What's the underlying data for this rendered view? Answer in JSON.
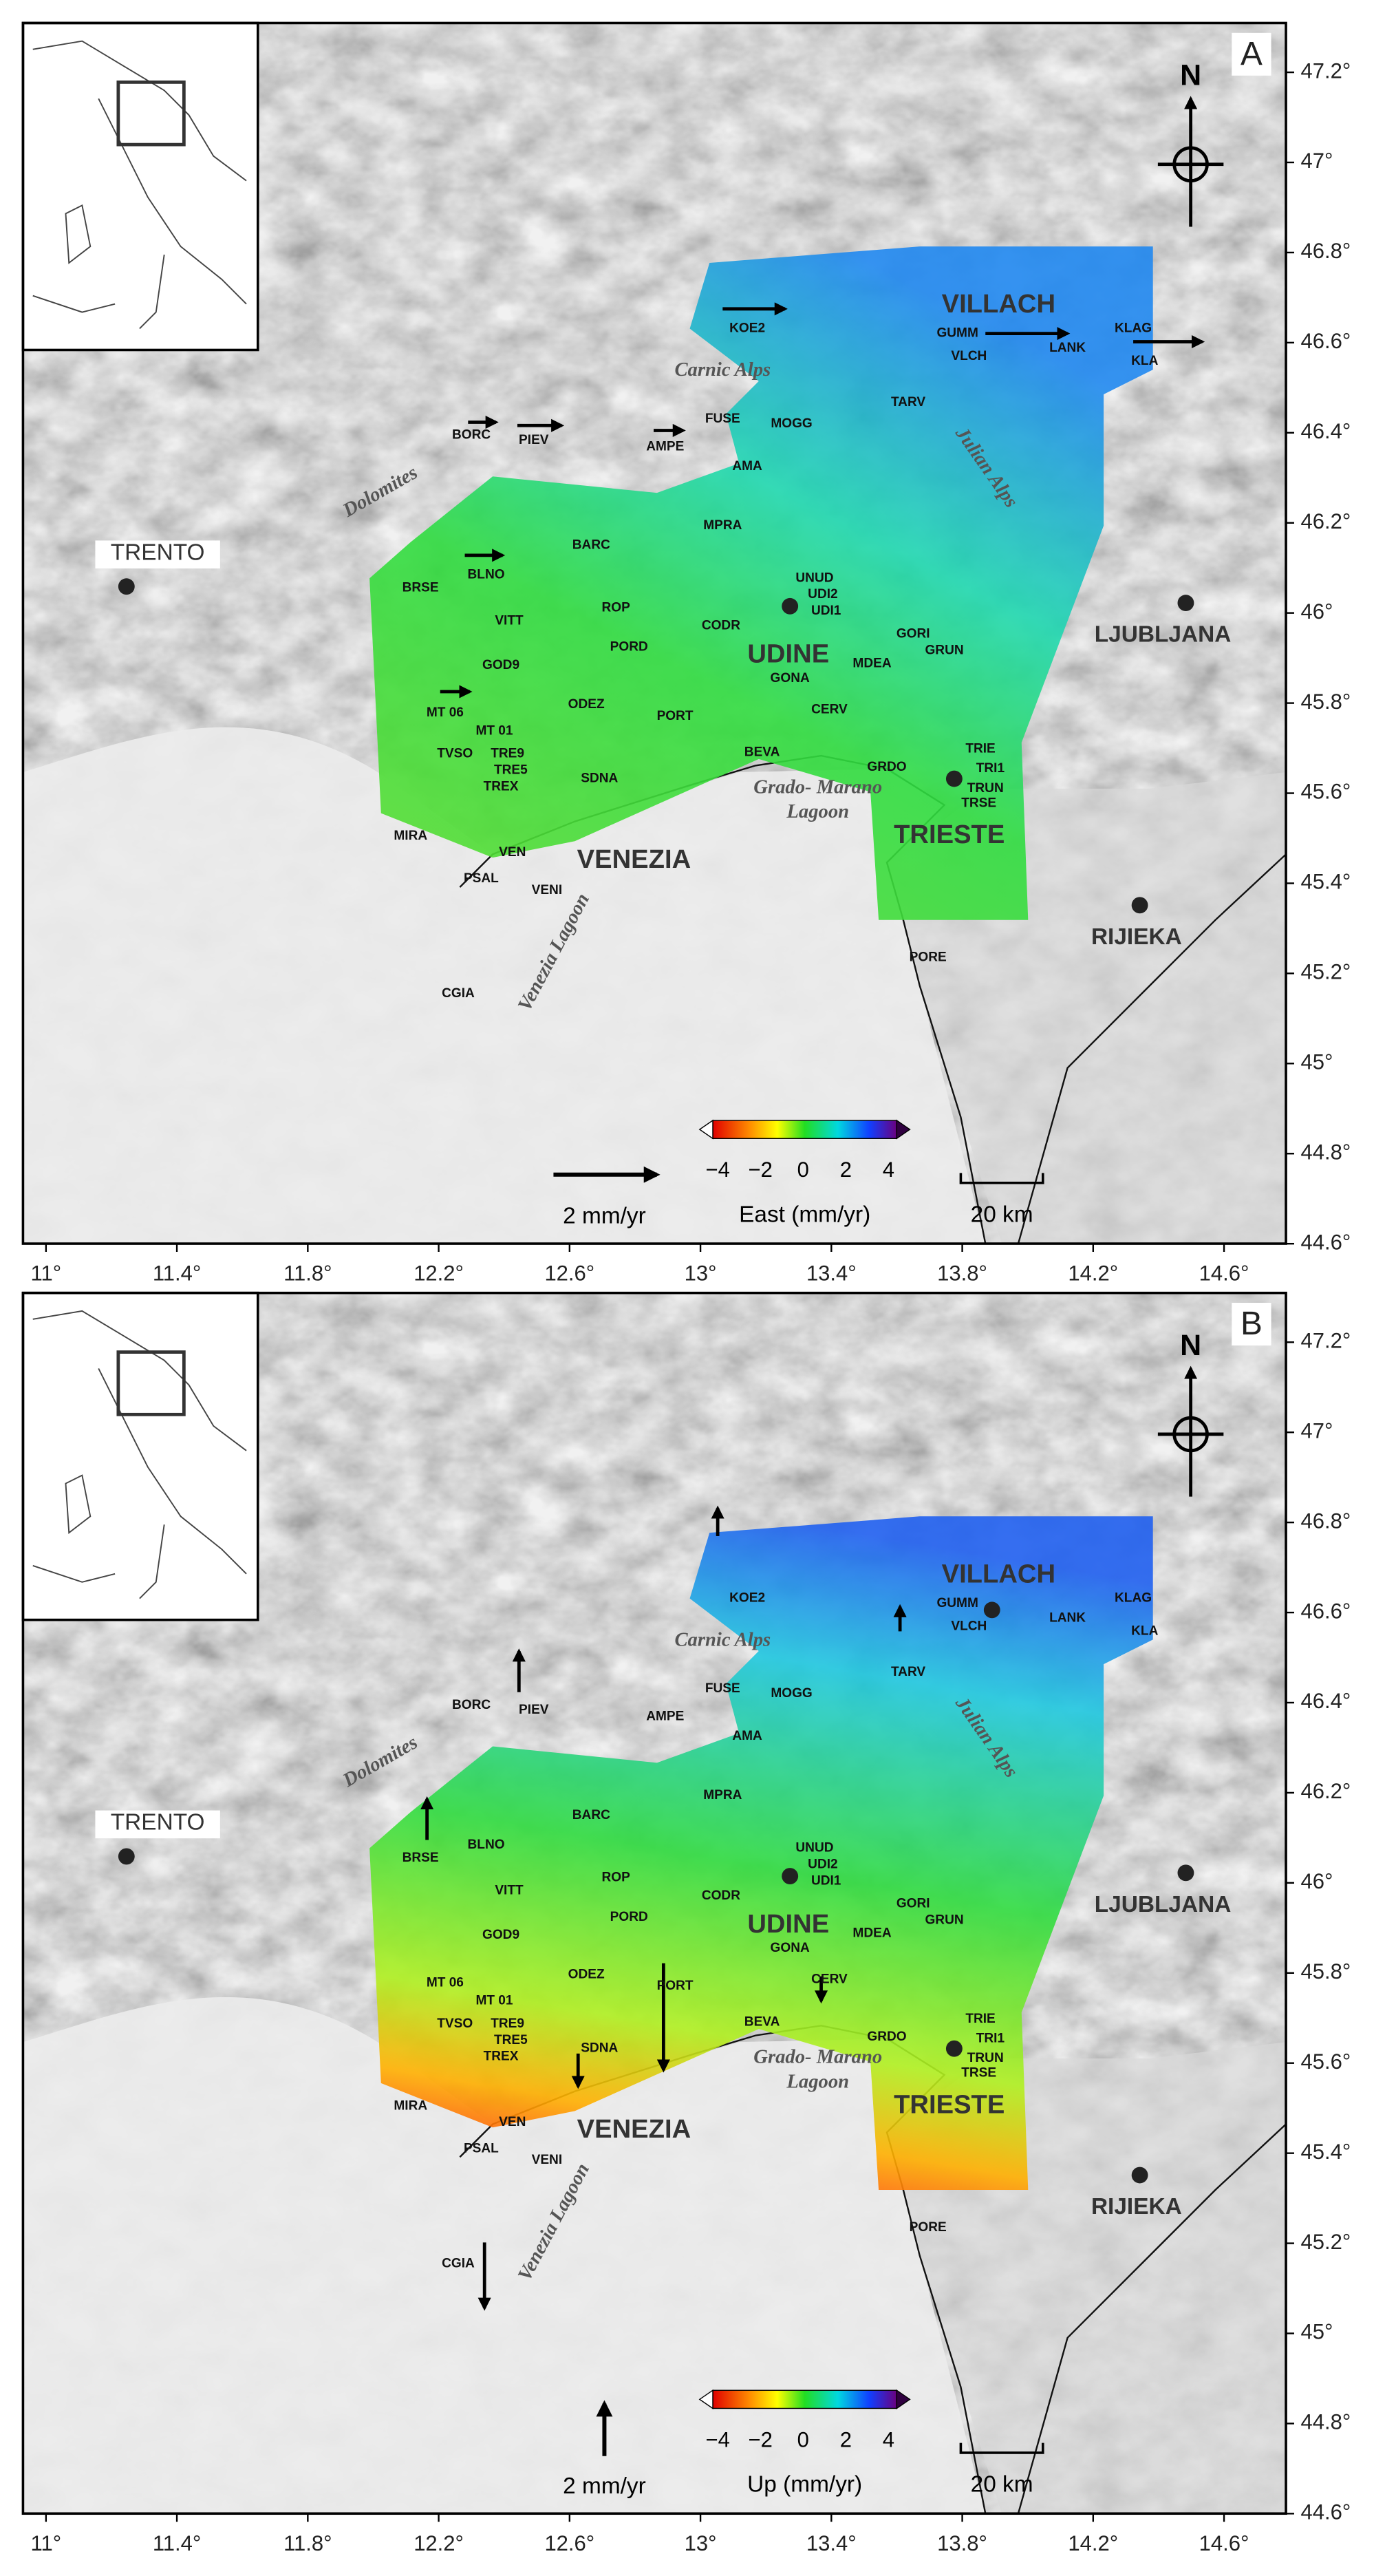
{
  "panels": [
    {
      "label": "A",
      "colorbar_label": "East (mm/yr)"
    },
    {
      "label": "B",
      "colorbar_label": "Up (mm/yr)"
    }
  ],
  "north": "N",
  "cities": [
    "TRENTO",
    "LJUBLJANA",
    "RIJIEKA"
  ],
  "regions": [
    "VILLACH",
    "UDINE",
    "TRIESTE",
    "VENEZIA"
  ],
  "features": [
    "Carnic Alps",
    "Julian Alps",
    "Dolomites",
    "Grado- Marano",
    "Lagoon",
    "Venezia Lagoon"
  ],
  "stations": [
    "KOE2",
    "GUMM",
    "VLCH",
    "LANK",
    "KLAG",
    "KLA",
    "TARV",
    "BORC",
    "PIEV",
    "FUSE",
    "MOGG",
    "AMPE",
    "AMA",
    "MPRA",
    "BARC",
    "BRSE",
    "BLNO",
    "UNUD",
    "UDI2",
    "UDI1",
    "VITT",
    "ROP",
    "CODR",
    "GORI",
    "GRUN",
    "PORD",
    "MDEA",
    "GOD9",
    "GONA",
    "ODEZ",
    "PORT",
    "CERV",
    "MT 06",
    "MT 01",
    "TVSO",
    "TRE9",
    "TRE5",
    "TREX",
    "SDNA",
    "BEVA",
    "GRDO",
    "TRIE",
    "TRI1",
    "TRUN",
    "TRSE",
    "MIRA",
    "VEN",
    "PSAL",
    "VENI",
    "CGIA",
    "PORE"
  ],
  "colorbar_ticks": [
    "−4",
    "−2",
    "0",
    "2",
    "4"
  ],
  "scale_arrow": "2 mm/yr",
  "scale_bar": "20 km",
  "lat_ticks": [
    "47.2°",
    "47°",
    "46.8°",
    "46.6°",
    "46.4°",
    "46.2°",
    "46°",
    "45.8°",
    "45.6°",
    "45.4°",
    "45.2°",
    "45°",
    "44.8°",
    "44.6°"
  ],
  "lon_ticks": [
    "11°",
    "11.4°",
    "11.8°",
    "12.2°",
    "12.6°",
    "13°",
    "13.4°",
    "13.8°",
    "14.2°",
    "14.6°"
  ]
}
